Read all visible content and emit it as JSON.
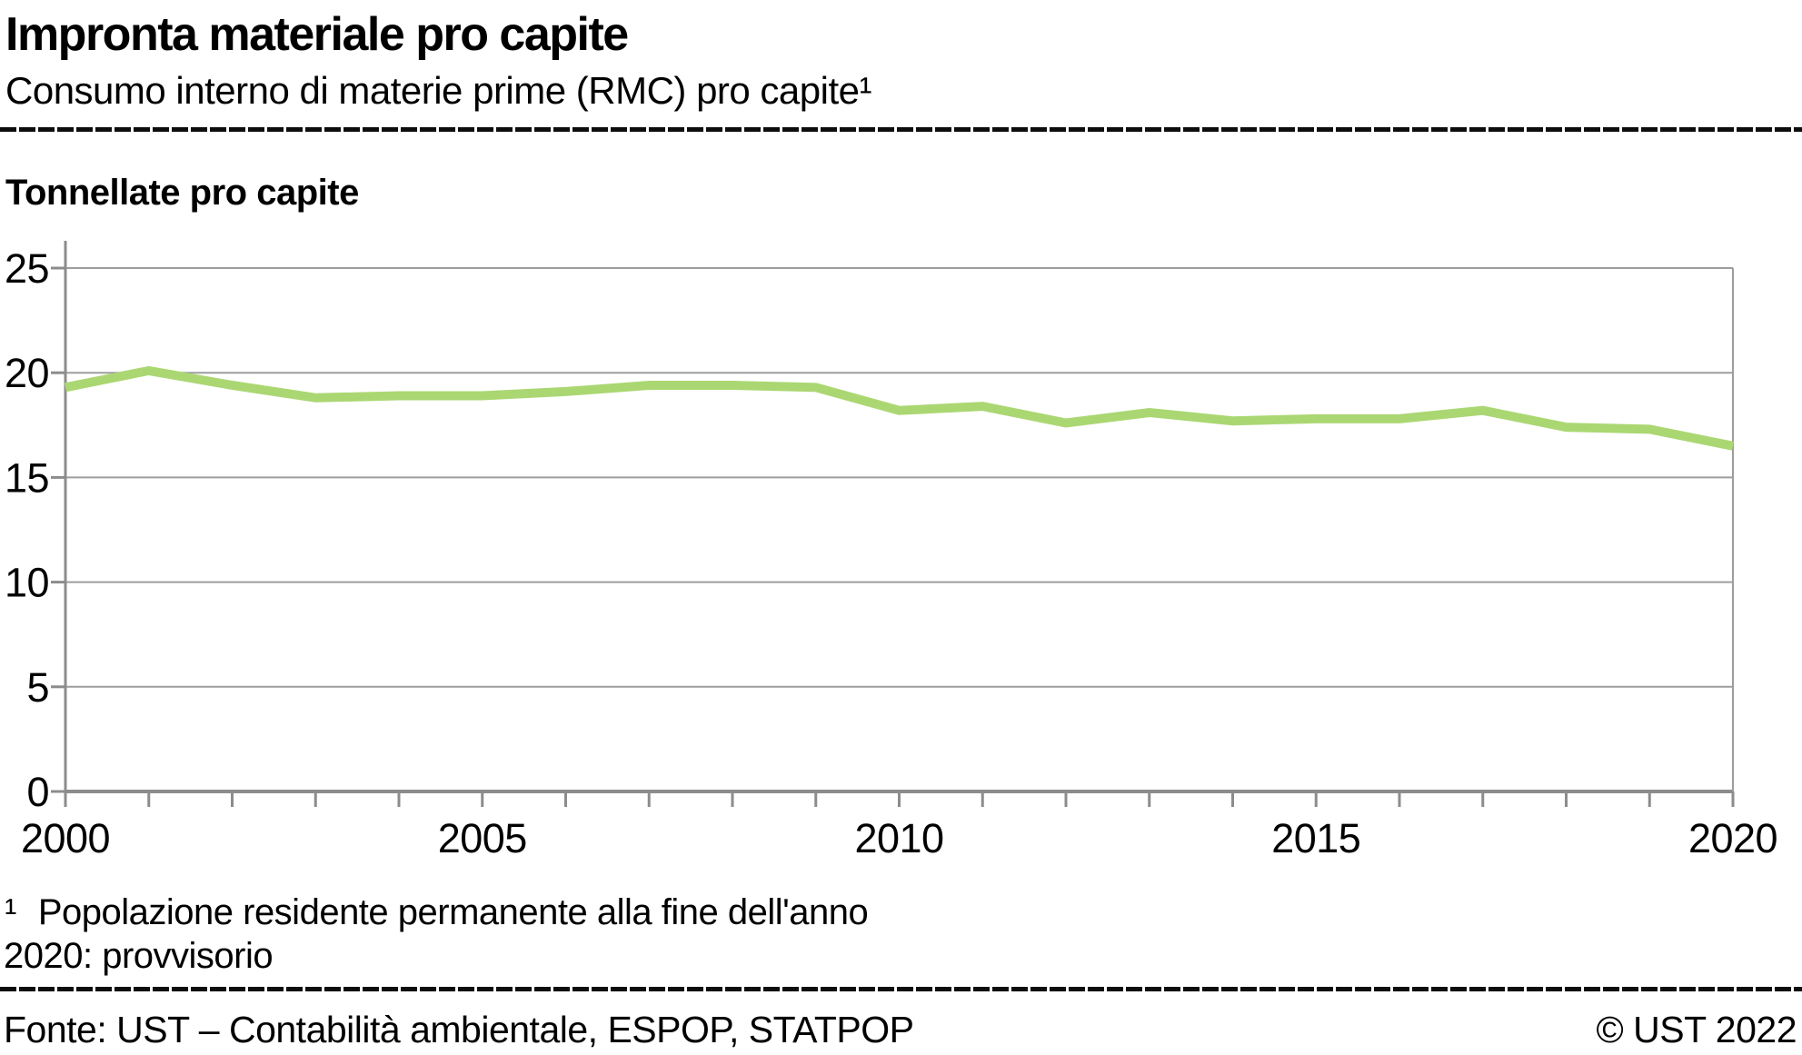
{
  "header": {
    "title": "Impronta materiale pro capite",
    "subtitle": "Consumo interno di materie prime (RMC) pro capite¹"
  },
  "chart": {
    "axis_title": "Tonnellate pro capite"
  },
  "chart_data": {
    "type": "line",
    "title": "Impronta materiale pro capite",
    "subtitle": "Consumo interno di materie prime (RMC) pro capite",
    "ylabel": "Tonnellate pro capite",
    "xlabel": "",
    "x": [
      2000,
      2001,
      2002,
      2003,
      2004,
      2005,
      2006,
      2007,
      2008,
      2009,
      2010,
      2011,
      2012,
      2013,
      2014,
      2015,
      2016,
      2017,
      2018,
      2019,
      2020
    ],
    "series": [
      {
        "name": "Consumo interno di materie prime (RMC) pro capite",
        "color": "#abd773",
        "values": [
          19.3,
          20.1,
          19.4,
          18.8,
          18.9,
          18.9,
          19.1,
          19.4,
          19.4,
          19.3,
          18.2,
          18.4,
          17.6,
          18.1,
          17.7,
          17.8,
          17.8,
          18.2,
          17.4,
          17.3,
          16.5
        ]
      }
    ],
    "ylim": [
      0,
      25
    ],
    "yticks": [
      0,
      5,
      10,
      15,
      20,
      25
    ],
    "xticks_labeled": [
      2000,
      2005,
      2010,
      2015,
      2020
    ],
    "grid": true,
    "legend_position": "none"
  },
  "footnotes": {
    "marker": "¹",
    "line1": "Popolazione residente permanente alla fine dell'anno",
    "line2": "2020: provvisorio"
  },
  "footer": {
    "source": "Fonte: UST – Contabilità ambientale, ESPOP, STATPOP",
    "copyright": "© UST 2022"
  },
  "colors": {
    "line": "#abd773",
    "grid": "#9d9d9d",
    "axis": "#8c8c8c",
    "text": "#000000"
  }
}
